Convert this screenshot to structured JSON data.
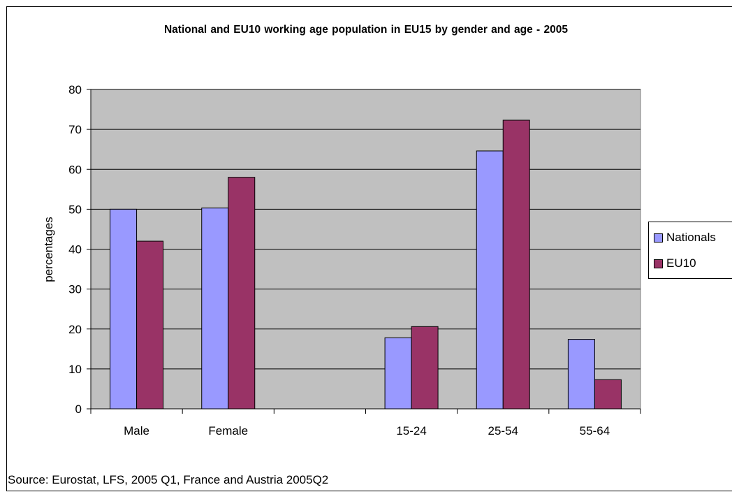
{
  "colors": {
    "background": "#ffffff",
    "plot_area": "#c0c0c0",
    "gridline": "#000000",
    "nationals": "#9999ff",
    "eu10": "#993366"
  },
  "chart_data": {
    "type": "bar",
    "title": "National and EU10 working age population in EU15 by gender and age - 2005",
    "ylabel": "percentages",
    "xlabel": "",
    "ylim": [
      0,
      80
    ],
    "yticks": [
      0,
      10,
      20,
      30,
      40,
      50,
      60,
      70,
      80
    ],
    "grid": true,
    "legend_position": "right",
    "categories": [
      "Male",
      "Female",
      "",
      "15-24",
      "25-54",
      "55-64"
    ],
    "series": [
      {
        "name": "Nationals",
        "values": [
          50.0,
          50.3,
          null,
          17.8,
          64.6,
          17.4
        ]
      },
      {
        "name": "EU10",
        "values": [
          42.0,
          58.0,
          null,
          20.6,
          72.3,
          7.3
        ]
      }
    ]
  },
  "footer": {
    "source": "Source: Eurostat, LFS, 2005 Q1, France and Austria 2005Q2"
  }
}
